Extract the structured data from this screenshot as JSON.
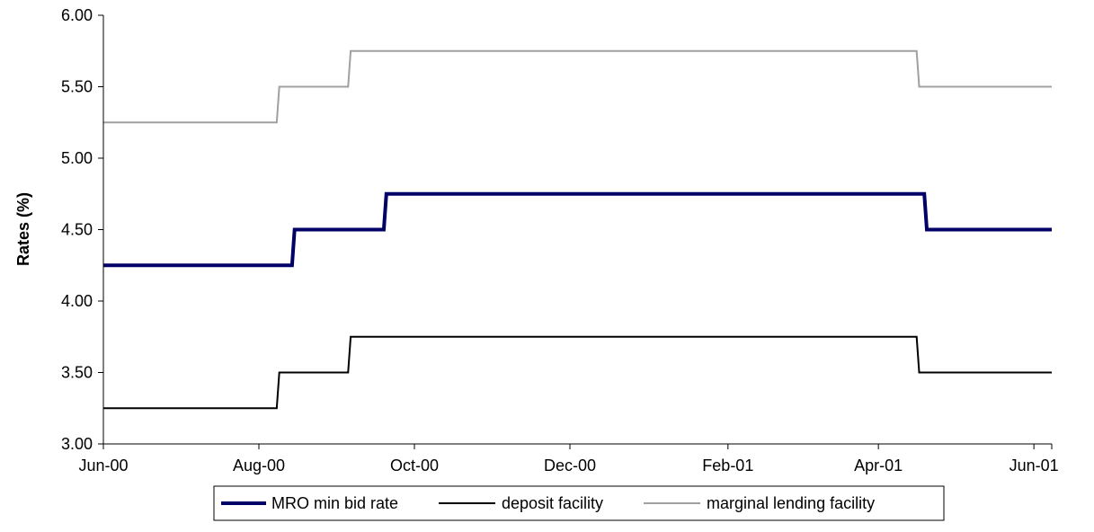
{
  "chart_data": {
    "type": "line",
    "title": "",
    "xlabel": "",
    "ylabel": "Rates (%)",
    "ylim": [
      3.0,
      6.0
    ],
    "xlim": [
      "2000-06-01",
      "2001-06-08"
    ],
    "yticks": [
      "3.00",
      "3.50",
      "4.00",
      "4.50",
      "5.00",
      "5.50",
      "6.00"
    ],
    "xticks": [
      {
        "date": "2000-06-01",
        "label": "Jun-00"
      },
      {
        "date": "2000-08-01",
        "label": "Aug-00"
      },
      {
        "date": "2000-10-01",
        "label": "Oct-00"
      },
      {
        "date": "2000-12-01",
        "label": "Dec-00"
      },
      {
        "date": "2001-02-01",
        "label": "Feb-01"
      },
      {
        "date": "2001-04-01",
        "label": "Apr-01"
      },
      {
        "date": "2001-06-01",
        "label": "Jun-01"
      }
    ],
    "grid": false,
    "legend_position": "bottom",
    "series": [
      {
        "name": "MRO min bid rate",
        "color": "#000066",
        "style": "thick",
        "points": [
          {
            "x": "2000-06-01",
            "y": 4.25
          },
          {
            "x": "2000-08-14",
            "y": 4.25
          },
          {
            "x": "2000-08-15",
            "y": 4.5
          },
          {
            "x": "2000-09-19",
            "y": 4.5
          },
          {
            "x": "2000-09-20",
            "y": 4.75
          },
          {
            "x": "2001-04-19",
            "y": 4.75
          },
          {
            "x": "2001-04-20",
            "y": 4.5
          },
          {
            "x": "2001-06-08",
            "y": 4.5
          }
        ]
      },
      {
        "name": "deposit facility",
        "color": "#000000",
        "style": "thin",
        "points": [
          {
            "x": "2000-06-01",
            "y": 3.25
          },
          {
            "x": "2000-08-08",
            "y": 3.25
          },
          {
            "x": "2000-08-09",
            "y": 3.5
          },
          {
            "x": "2000-09-05",
            "y": 3.5
          },
          {
            "x": "2000-09-06",
            "y": 3.75
          },
          {
            "x": "2001-04-16",
            "y": 3.75
          },
          {
            "x": "2001-04-17",
            "y": 3.5
          },
          {
            "x": "2001-06-08",
            "y": 3.5
          }
        ]
      },
      {
        "name": "marginal lending facility",
        "color": "#a0a0a0",
        "style": "thin",
        "points": [
          {
            "x": "2000-06-01",
            "y": 5.25
          },
          {
            "x": "2000-08-08",
            "y": 5.25
          },
          {
            "x": "2000-08-09",
            "y": 5.5
          },
          {
            "x": "2000-09-05",
            "y": 5.5
          },
          {
            "x": "2000-09-06",
            "y": 5.75
          },
          {
            "x": "2001-04-16",
            "y": 5.75
          },
          {
            "x": "2001-04-17",
            "y": 5.5
          },
          {
            "x": "2001-06-08",
            "y": 5.5
          }
        ]
      }
    ]
  }
}
